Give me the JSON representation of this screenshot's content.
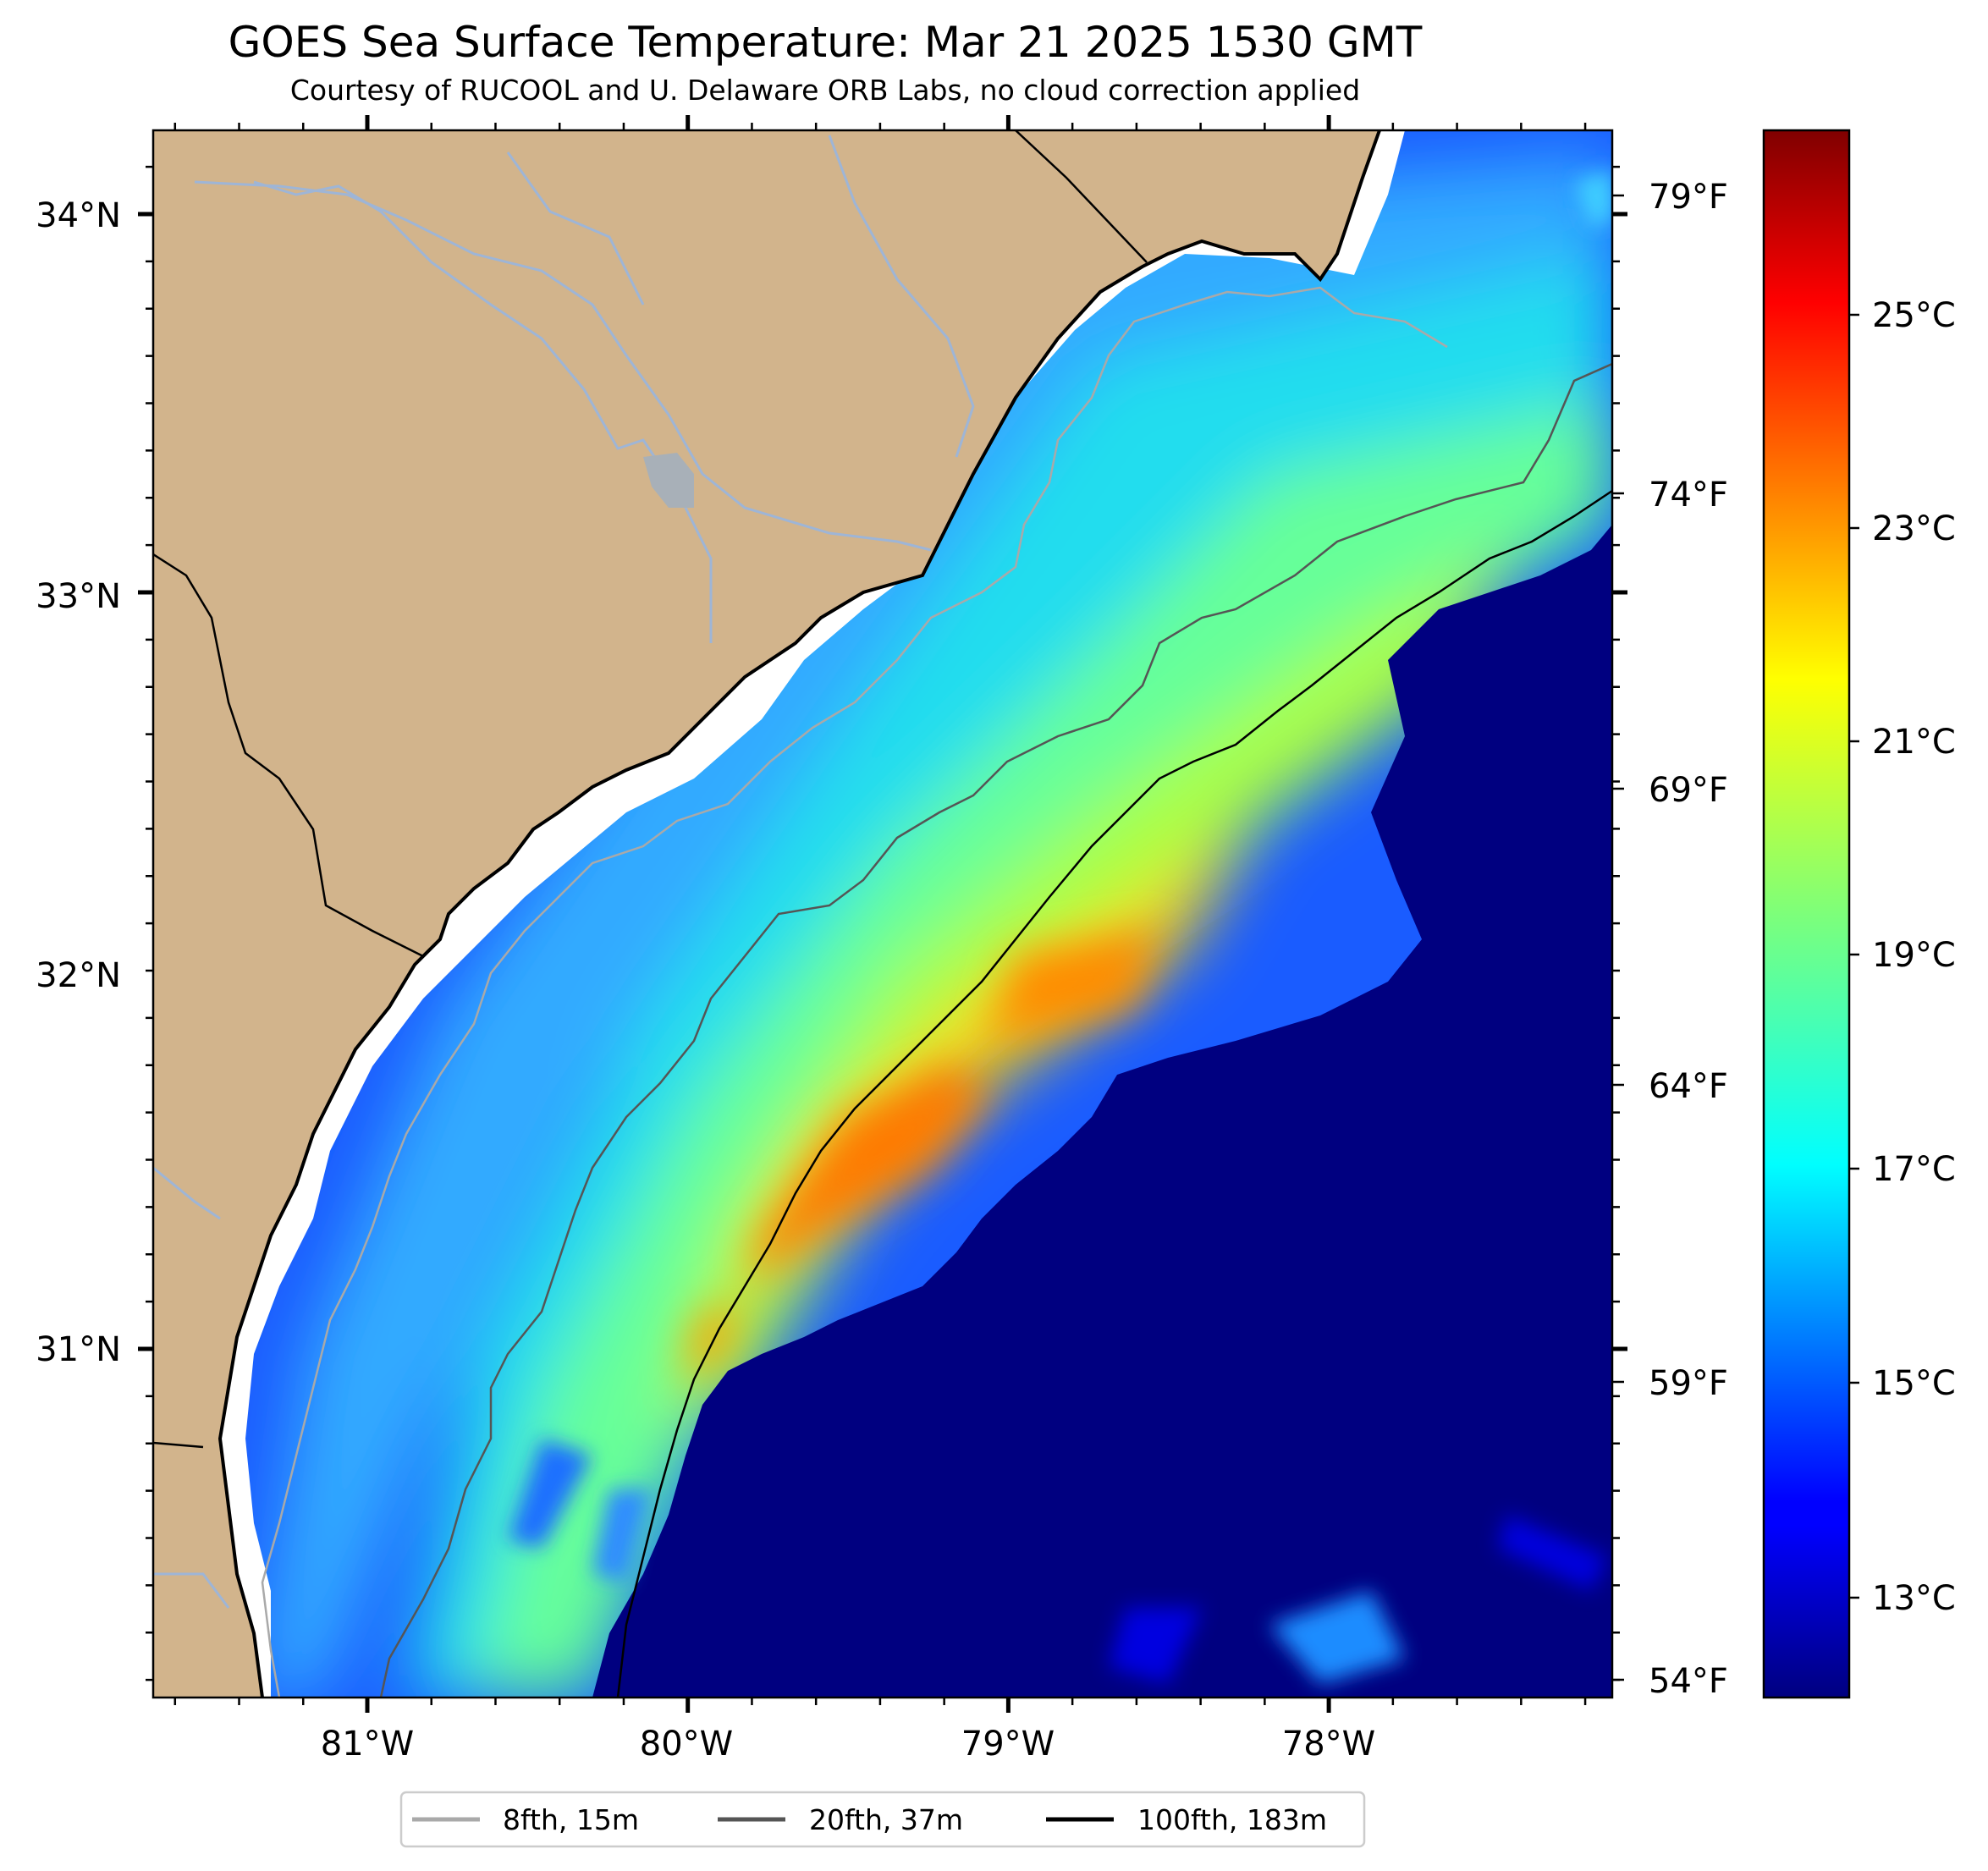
{
  "title": "GOES Sea Surface Temperature: Mar 21 2025 1530 GMT",
  "subtitle": "Courtesy of RUCOOL and U. Delaware ORB Labs, no cloud correction applied",
  "map": {
    "lon_ticks": [
      "81°W",
      "80°W",
      "79°W",
      "78°W"
    ],
    "lat_ticks": [
      "34°N",
      "33°N",
      "32°N",
      "31°N"
    ],
    "fahrenheit_ticks": [
      "79°F",
      "74°F",
      "69°F",
      "64°F",
      "59°F",
      "54°F"
    ],
    "land_color": "#d2b48c",
    "ocean_gap_color": "#ffffff"
  },
  "colorbar": {
    "colormap": "jet",
    "ticks": [
      "25°C",
      "23°C",
      "21°C",
      "19°C",
      "17°C",
      "15°C",
      "13°C"
    ]
  },
  "legend": [
    {
      "label": "8fth, 15m",
      "color": "#a9a9a9"
    },
    {
      "label": "20fth, 37m",
      "color": "#555555"
    },
    {
      "label": "100fth, 183m",
      "color": "#000000"
    }
  ]
}
